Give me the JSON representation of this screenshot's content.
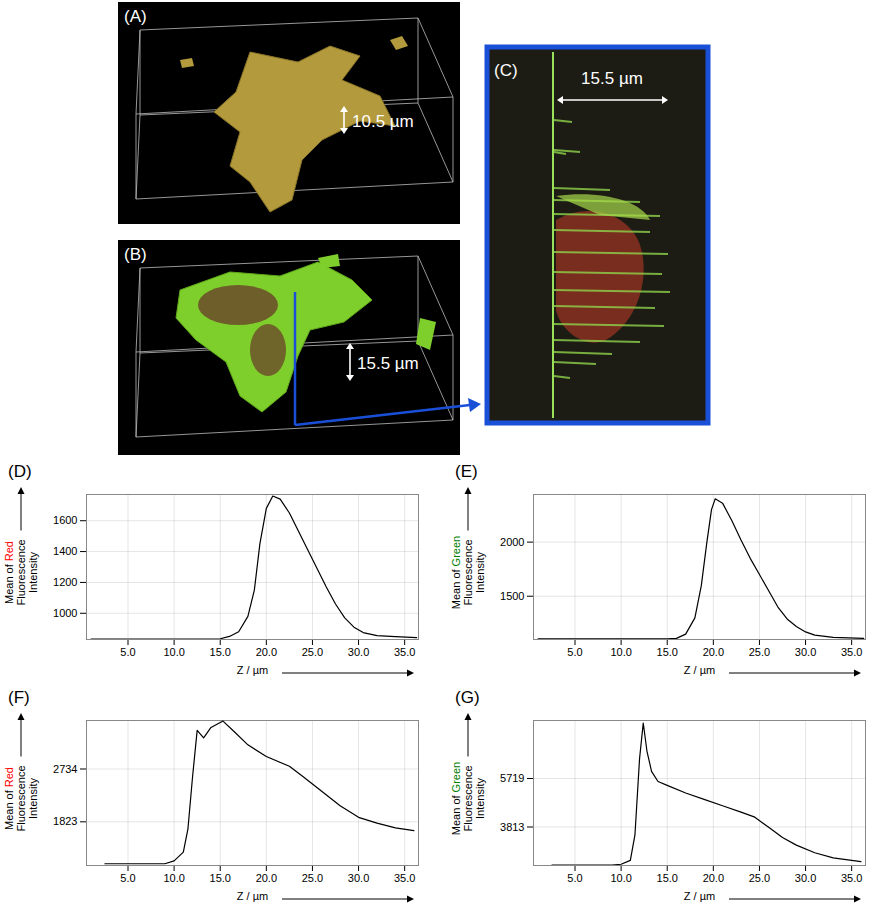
{
  "panels": [
    {
      "label": "(A)",
      "annotation": "10.5 µm"
    },
    {
      "label": "(B)",
      "annotation": "15.5 µm"
    },
    {
      "label": "(C)",
      "annotation": "15.5 µm"
    }
  ],
  "chart_data": [
    {
      "type": "line",
      "panel": "(D)",
      "xlabel": "Z / µm",
      "ylabel": "Mean of Red Fluorescence Intensity",
      "x": [
        1,
        15,
        16,
        17,
        18,
        18.7,
        19.3,
        20,
        20.7,
        21.5,
        22.5,
        23.5,
        24.5,
        25.5,
        26.5,
        27.5,
        28.5,
        29.5,
        30.5,
        32,
        34,
        36.3
      ],
      "series": [
        {
          "color": "#000000",
          "values": [
            833,
            835,
            850,
            880,
            980,
            1150,
            1450,
            1680,
            1760,
            1740,
            1650,
            1530,
            1410,
            1290,
            1170,
            1060,
            970,
            910,
            875,
            855,
            848,
            842
          ]
        }
      ],
      "xlim": [
        0.5,
        36.5
      ],
      "xticks": [
        {
          "value": 5,
          "label": "5.0"
        },
        {
          "value": 10,
          "label": "10.0"
        },
        {
          "value": 15,
          "label": "15.0"
        },
        {
          "value": 20,
          "label": "20.0"
        },
        {
          "value": 25,
          "label": "25.0"
        },
        {
          "value": 30,
          "label": "30.0"
        },
        {
          "value": 35,
          "label": "35.0"
        }
      ],
      "ylim": [
        830,
        1770
      ],
      "yticks": [
        1000,
        1200,
        1400,
        1600
      ],
      "grid": true
    },
    {
      "type": "line",
      "panel": "(E)",
      "xlabel": "Z / µm",
      "ylabel": "Mean of Green Fluorescence Intensity",
      "x": [
        1,
        15,
        16,
        17,
        18,
        18.7,
        19.3,
        19.8,
        20.2,
        21,
        22,
        23,
        24,
        25,
        26,
        27,
        28,
        29,
        30,
        31,
        33,
        36.3
      ],
      "series": [
        {
          "color": "#000000",
          "values": [
            1105,
            1105,
            1110,
            1150,
            1300,
            1600,
            2000,
            2300,
            2400,
            2360,
            2200,
            2020,
            1850,
            1700,
            1550,
            1400,
            1290,
            1220,
            1170,
            1140,
            1120,
            1110
          ]
        }
      ],
      "xlim": [
        0.5,
        36.5
      ],
      "xticks": [
        {
          "value": 5,
          "label": "5.0"
        },
        {
          "value": 10,
          "label": "10.0"
        },
        {
          "value": 15,
          "label": "15.0"
        },
        {
          "value": 20,
          "label": "20.0"
        },
        {
          "value": 25,
          "label": "25.0"
        },
        {
          "value": 30,
          "label": "30.0"
        },
        {
          "value": 35,
          "label": "35.0"
        }
      ],
      "ylim": [
        1100,
        2440
      ],
      "yticks": [
        1500,
        2000
      ],
      "grid": true
    },
    {
      "type": "line",
      "panel": "(F)",
      "xlabel": "Z / µm",
      "ylabel": "Mean of Red Fluorescence Intensity",
      "x": [
        2.5,
        9,
        10,
        11,
        11.5,
        12,
        12.5,
        13.2,
        14,
        15.3,
        16.5,
        18,
        20,
        22.5,
        24,
        26,
        28,
        30,
        32,
        34,
        36
      ],
      "series": [
        {
          "color": "#000000",
          "values": [
            1100,
            1100,
            1150,
            1300,
            1700,
            2600,
            3400,
            3270,
            3450,
            3560,
            3380,
            3150,
            2950,
            2780,
            2600,
            2350,
            2100,
            1900,
            1800,
            1720,
            1670
          ]
        }
      ],
      "xlim": [
        0.5,
        36.5
      ],
      "xticks": [
        {
          "value": 5,
          "label": "5.0"
        },
        {
          "value": 10,
          "label": "10.0"
        },
        {
          "value": 15,
          "label": "15.0"
        },
        {
          "value": 20,
          "label": "20.0"
        },
        {
          "value": 25,
          "label": "25.0"
        },
        {
          "value": 30,
          "label": "30.0"
        },
        {
          "value": 35,
          "label": "35.0"
        }
      ],
      "ylim": [
        1070,
        3570
      ],
      "yticks": [
        1823,
        2734
      ],
      "grid": true
    },
    {
      "type": "line",
      "panel": "(G)",
      "xlabel": "Z / µm",
      "ylabel": "Mean of Green Fluorescence Intensity",
      "x": [
        2.5,
        9,
        10,
        11,
        11.5,
        12,
        12.4,
        12.8,
        13.3,
        14,
        15,
        17,
        19,
        21,
        23,
        24.5,
        26,
        27.5,
        29,
        31,
        33,
        36
      ],
      "series": [
        {
          "color": "#000000",
          "values": [
            2320,
            2320,
            2350,
            2500,
            3500,
            6500,
            7900,
            6800,
            6000,
            5600,
            5450,
            5150,
            4900,
            4650,
            4400,
            4200,
            3800,
            3400,
            3100,
            2800,
            2600,
            2450
          ]
        }
      ],
      "xlim": [
        0.5,
        36.5
      ],
      "xticks": [
        {
          "value": 5,
          "label": "5.0"
        },
        {
          "value": 10,
          "label": "10.0"
        },
        {
          "value": 15,
          "label": "15.0"
        },
        {
          "value": 20,
          "label": "20.0"
        },
        {
          "value": 25,
          "label": "25.0"
        },
        {
          "value": 30,
          "label": "30.0"
        },
        {
          "value": 35,
          "label": "35.0"
        }
      ],
      "ylim": [
        2300,
        8000
      ],
      "yticks": [
        3813,
        5719
      ],
      "grid": true
    }
  ]
}
